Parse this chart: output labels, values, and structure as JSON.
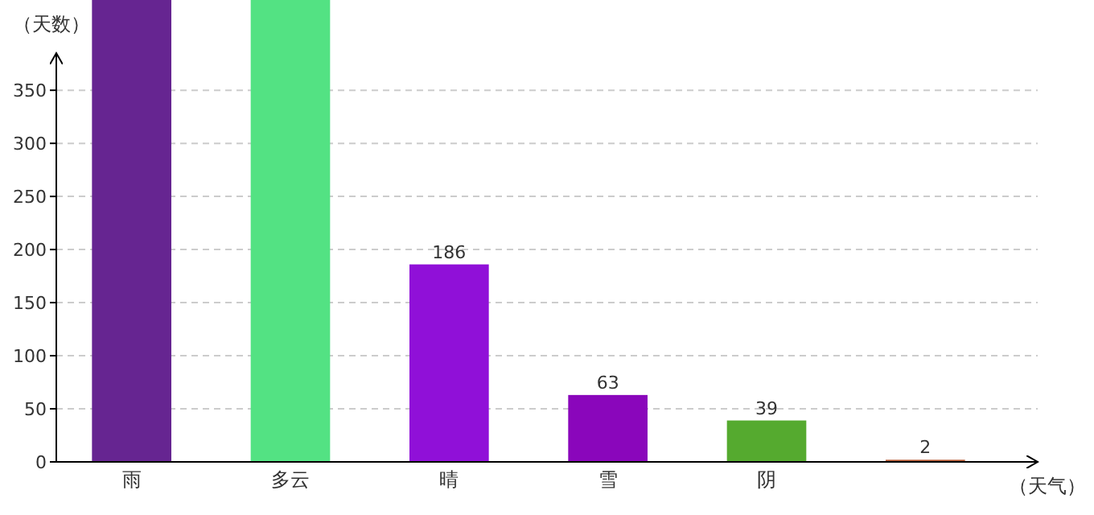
{
  "chart_data": {
    "type": "bar",
    "ylabel": "（天数）",
    "xlabel": "（天气）",
    "categories": [
      "雨",
      "多云",
      "晴",
      "雪",
      "阴",
      null
    ],
    "values": [
      435,
      435,
      186,
      63,
      39,
      2
    ],
    "colors": [
      "#662591",
      "#53e283",
      "#9010d8",
      "#8a06bb",
      "#55aa2f",
      "#b5572f"
    ],
    "value_labels": [
      null,
      null,
      "186",
      "63",
      "39",
      "2"
    ],
    "ylim": [
      0,
      435
    ],
    "yticks": [
      0,
      50,
      100,
      150,
      200,
      250,
      300,
      350
    ],
    "grid": "y"
  }
}
